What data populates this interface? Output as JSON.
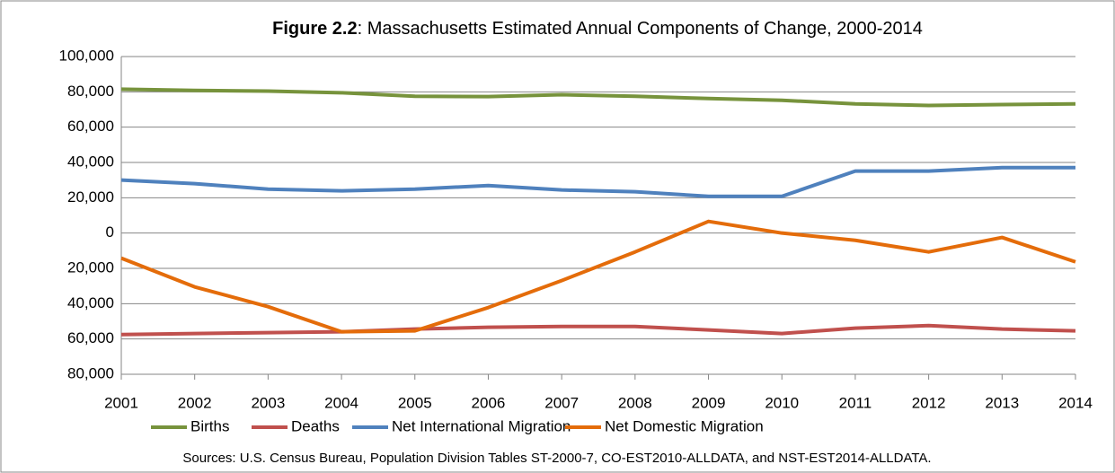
{
  "chart_data": {
    "type": "line",
    "title": [
      "Figure 2.2",
      ": Massachusetts Estimated Annual Components of Change, 2000-2014"
    ],
    "source": "Sources: U.S. Census Bureau, Population Division Tables ST-2000-7, CO-EST2010-ALLDATA, and NST-EST2014-ALLDATA.",
    "categories": [
      "2001",
      "2002",
      "2003",
      "2004",
      "2005",
      "2006",
      "2007",
      "2008",
      "2009",
      "2010",
      "2011",
      "2012",
      "2013",
      "2014"
    ],
    "series": [
      {
        "name": "Births",
        "color": "#77933c",
        "values": [
          81500,
          80800,
          80400,
          79500,
          77500,
          77300,
          78400,
          77500,
          76200,
          75200,
          73200,
          72300,
          72800,
          73200
        ]
      },
      {
        "name": "Deaths",
        "color": "#c0504d",
        "values": [
          -57500,
          -56900,
          -56400,
          -55900,
          -54400,
          -53400,
          -52900,
          -52900,
          -54900,
          -56900,
          -53900,
          -52400,
          -54400,
          -55400
        ]
      },
      {
        "name": "Net International Migration",
        "color": "#4f81bd",
        "values": [
          30000,
          28000,
          24900,
          23900,
          24900,
          26900,
          24400,
          23400,
          20800,
          20800,
          35100,
          35100,
          37100,
          37100
        ]
      },
      {
        "name": "Net Domestic Migration",
        "color": "#e46c0a",
        "values": [
          -14200,
          -30500,
          -41700,
          -55900,
          -55400,
          -42200,
          -26900,
          -10700,
          6600,
          0,
          -4100,
          -10700,
          -2500,
          -16300
        ]
      }
    ],
    "ylim": [
      -80000,
      100000
    ],
    "yticks": [
      {
        "value": -80000,
        "label": "80,000"
      },
      {
        "value": -60000,
        "label": "60,000"
      },
      {
        "value": -40000,
        "label": "40,000"
      },
      {
        "value": -20000,
        "label": "20,000"
      },
      0,
      {
        "value": 20000,
        "label": "20,000"
      },
      {
        "value": 40000,
        "label": "40,000"
      },
      {
        "value": 60000,
        "label": "60,000"
      },
      {
        "value": 80000,
        "label": "80,000"
      },
      {
        "value": 100000,
        "label": "100,000"
      }
    ],
    "negative_tick_color": "#ff0000",
    "grid": true,
    "legend": "bottom"
  }
}
